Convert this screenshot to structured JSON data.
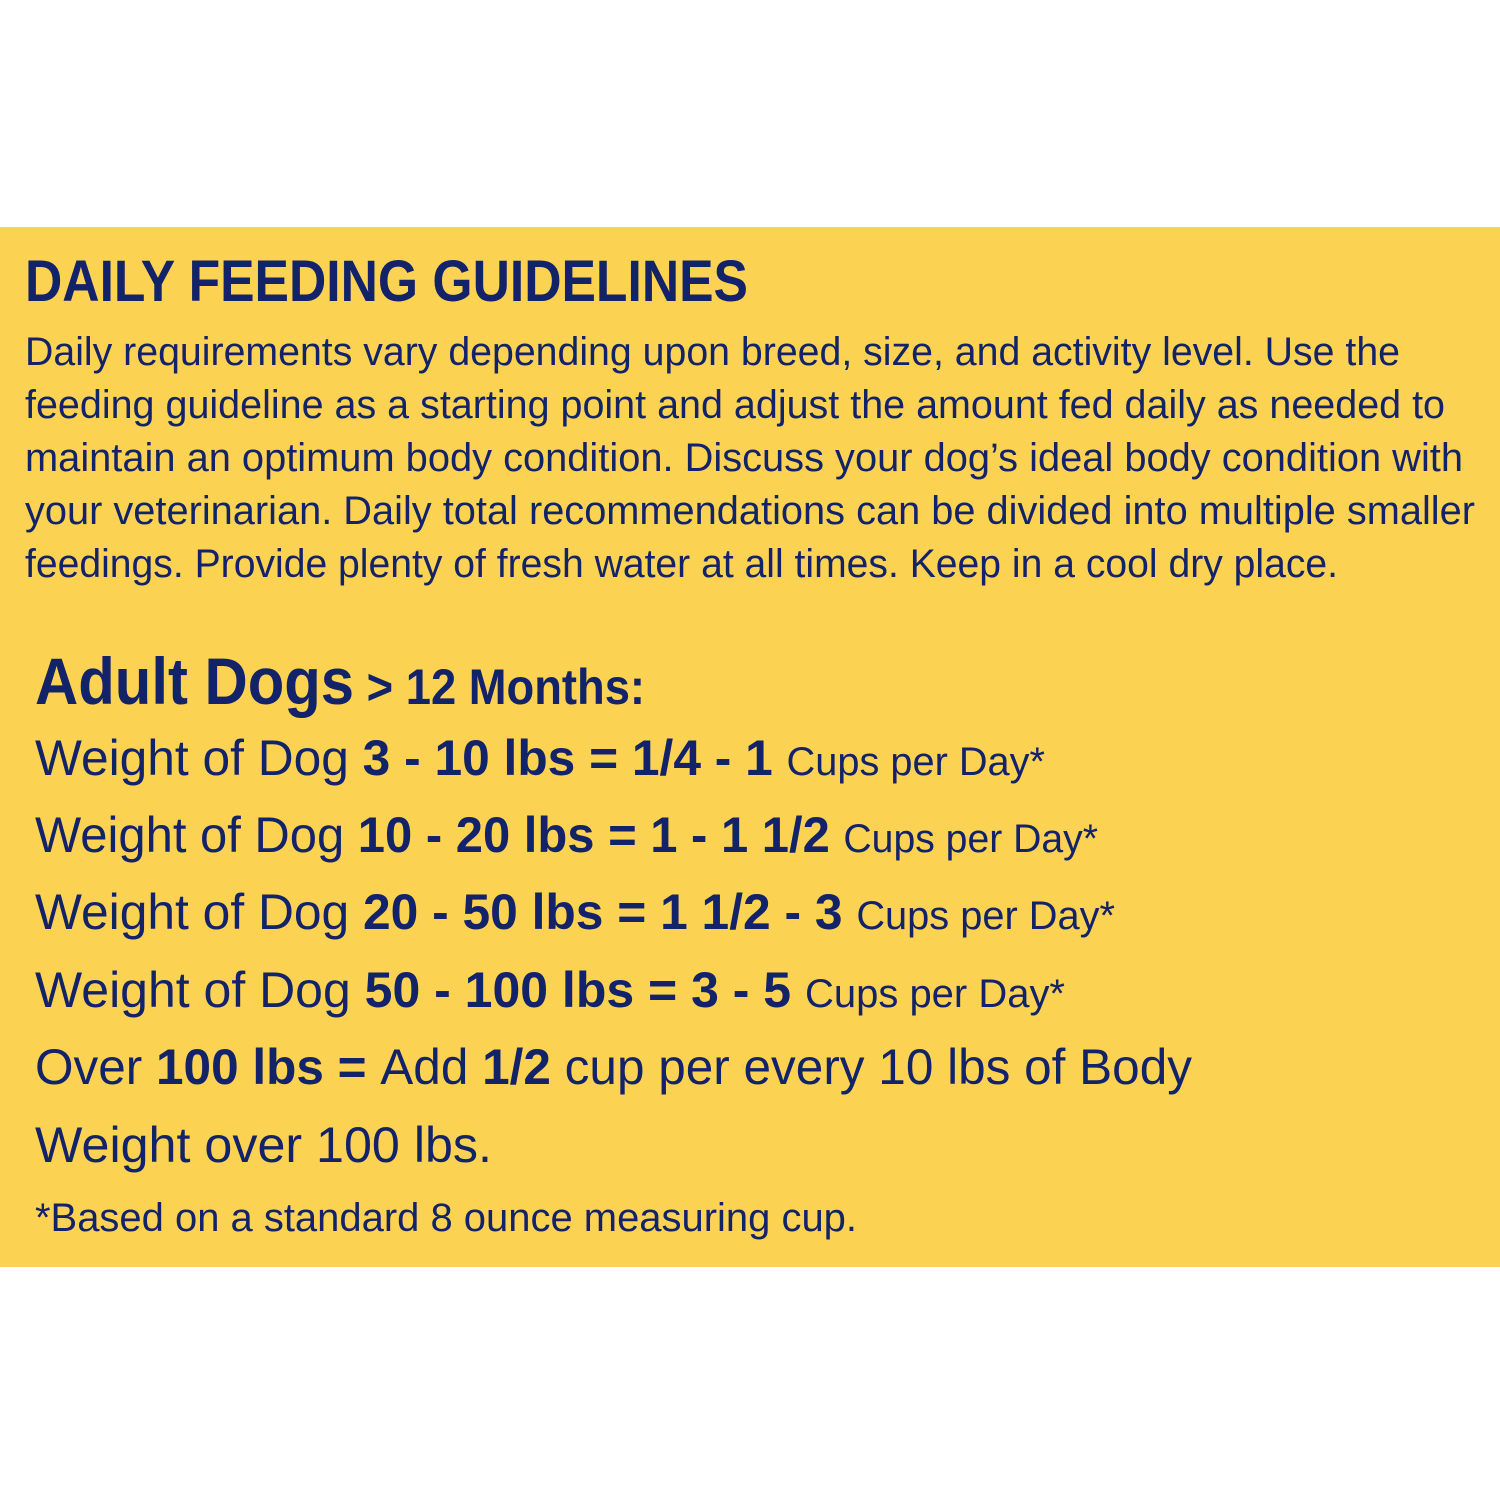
{
  "colors": {
    "background": "#fcd253",
    "text": "#13236a"
  },
  "title": "DAILY FEEDING GUIDELINES",
  "paragraph_lines": [
    "Daily requirements vary depending upon breed, size, and activity level. Use the",
    "feeding guideline as a starting point and adjust the amount fed daily as needed to",
    "maintain an optimum body condition. Discuss your dog’s ideal body condition with",
    "your veterinarian. Daily total recommendations can be divided into multiple smaller",
    "feedings. Provide plenty of fresh water at all times. Keep in a cool dry place."
  ],
  "heading": {
    "main": "Adult Dogs",
    "sub": " > 12 Months:"
  },
  "rows": [
    [
      {
        "t": "Weight of Dog ",
        "k": ""
      },
      {
        "t": "3 - 10 lbs = 1/4 - 1 ",
        "k": "b"
      },
      {
        "t": " Cups per Day*",
        "k": "s"
      }
    ],
    [
      {
        "t": "Weight of Dog ",
        "k": ""
      },
      {
        "t": "10 - 20 lbs = 1 - 1 1/2 ",
        "k": "b"
      },
      {
        "t": "Cups per Day*",
        "k": "s"
      }
    ],
    [
      {
        "t": "Weight of Dog ",
        "k": ""
      },
      {
        "t": "20 - 50 lbs = 1 1/2 - 3 ",
        "k": "b"
      },
      {
        "t": "Cups per Day*",
        "k": "s"
      }
    ],
    [
      {
        "t": "Weight of Dog ",
        "k": ""
      },
      {
        "t": "50 - 100 lbs = 3 - 5 ",
        "k": "b"
      },
      {
        "t": "Cups per Day*",
        "k": "s"
      }
    ],
    [
      {
        "t": "Over ",
        "k": ""
      },
      {
        "t": "100 lbs = ",
        "k": "b"
      },
      {
        "t": "Add ",
        "k": ""
      },
      {
        "t": "1/2",
        "k": "b"
      },
      {
        "t": " cup per every 10 lbs of Body",
        "k": ""
      }
    ],
    [
      {
        "t": "Weight over 100 lbs.",
        "k": ""
      }
    ]
  ],
  "footnote": "*Based on a standard 8 ounce measuring cup."
}
